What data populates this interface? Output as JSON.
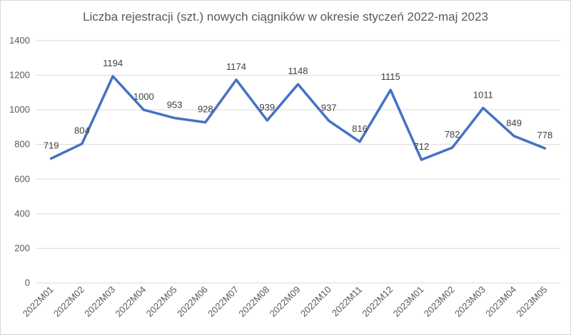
{
  "chart_data": {
    "type": "line",
    "title": "Liczba rejestracji (szt.) nowych ciągników w okresie styczeń 2022-maj 2023",
    "xlabel": "",
    "ylabel": "",
    "categories": [
      "2022M01",
      "2022M02",
      "2022M03",
      "2022M04",
      "2022M05",
      "2022M06",
      "2022M07",
      "2022M08",
      "2022M09",
      "2022M10",
      "2022M11",
      "2022M12",
      "2023M01",
      "2023M02",
      "2023M03",
      "2023M04",
      "2023M05"
    ],
    "series": [
      {
        "values": [
          719,
          804,
          1194,
          1000,
          953,
          928,
          1174,
          939,
          1148,
          937,
          816,
          1115,
          712,
          782,
          1011,
          849,
          778
        ]
      }
    ],
    "ylim": [
      0,
      1400
    ],
    "yticks": [
      0,
      200,
      400,
      600,
      800,
      1000,
      1200,
      1400
    ],
    "grid": true,
    "line_color": "#4472c4",
    "grid_color": "#d9d9d9"
  }
}
